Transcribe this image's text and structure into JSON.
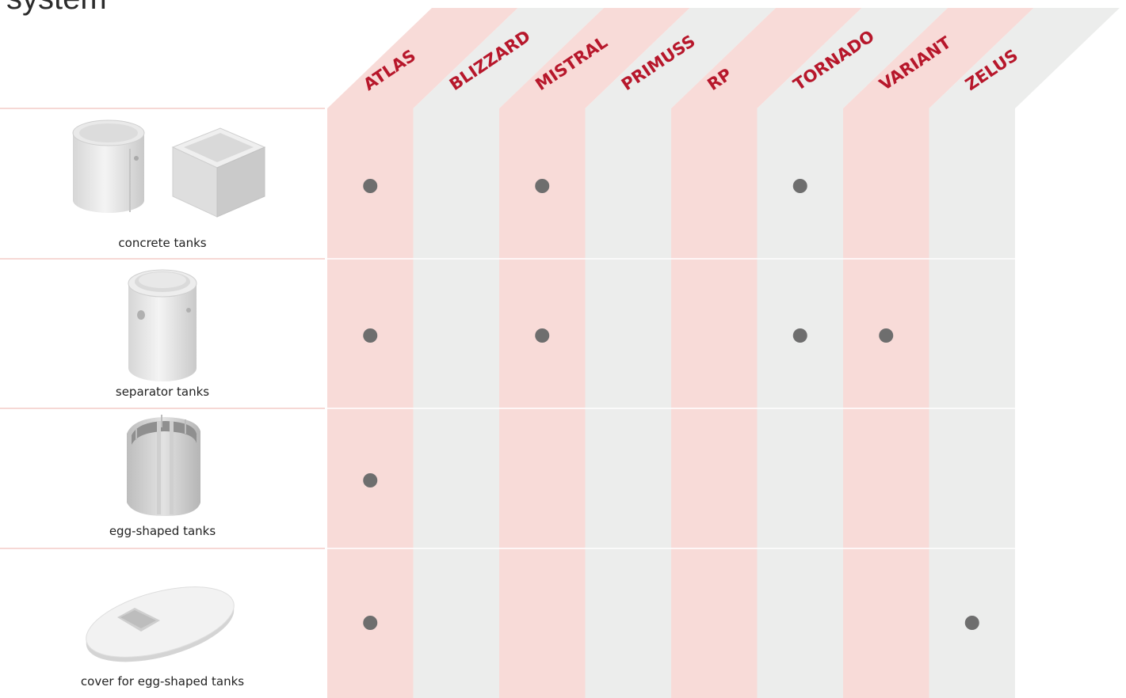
{
  "title": "system",
  "colors": {
    "pink": "#F8DBD8",
    "gray": "#ECEDEC",
    "header_text": "#B7172B",
    "dot": "#6E6E6E",
    "rule": "#F1C0BC",
    "separator": "#ffffff"
  },
  "systems": [
    "ATLAS",
    "BLIZZARD",
    "MISTRAL",
    "PRIMUSS",
    "RP",
    "TORNADO",
    "VARIANT",
    "ZELUS"
  ],
  "products": [
    {
      "name": "concrete tanks",
      "icon": "concrete-tanks-image",
      "systems": [
        "ATLAS",
        "MISTRAL",
        "TORNADO"
      ]
    },
    {
      "name": "separator tanks",
      "icon": "separator-tank-image",
      "systems": [
        "ATLAS",
        "MISTRAL",
        "TORNADO",
        "VARIANT"
      ]
    },
    {
      "name": "egg-shaped tanks",
      "icon": "egg-shaped-tank-image",
      "systems": [
        "ATLAS"
      ]
    },
    {
      "name": "cover for egg-shaped tanks",
      "icon": "egg-tank-cover-image",
      "systems": [
        "ATLAS",
        "ZELUS"
      ]
    }
  ]
}
